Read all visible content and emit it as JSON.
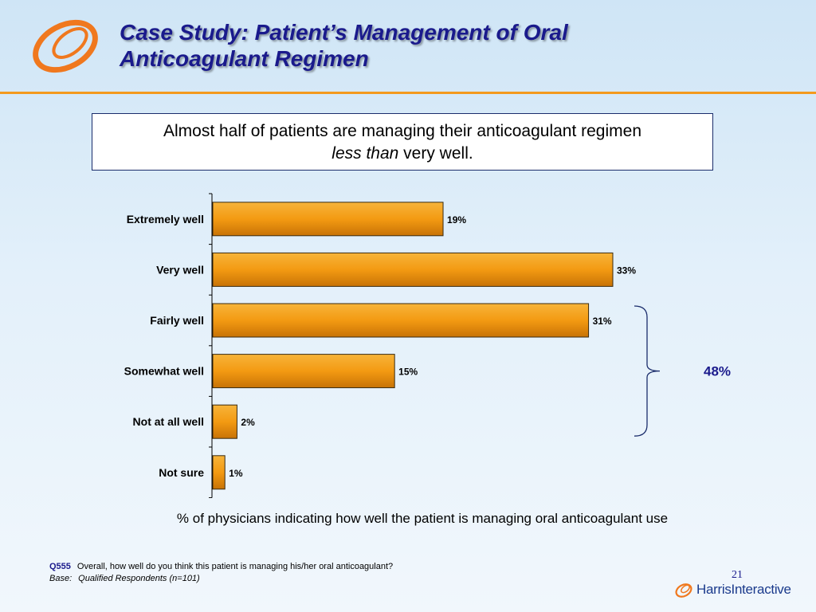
{
  "title": {
    "line1": "Case Study: Patient’s Management of Oral",
    "line2": "Anticoagulant Regimen"
  },
  "callout": {
    "line1": "Almost half of patients are managing their anticoagulant regimen",
    "line2_italic": "less than",
    "line2_rest": " very well."
  },
  "chart_data": {
    "type": "bar",
    "orientation": "horizontal",
    "categories": [
      "Extremely well",
      "Very well",
      "Fairly well",
      "Somewhat well",
      "Not at all well",
      "Not sure"
    ],
    "values": [
      19,
      33,
      31,
      15,
      2,
      1
    ],
    "value_labels": [
      "19%",
      "33%",
      "31%",
      "15%",
      "2%",
      "1%"
    ],
    "xlim": [
      0,
      40
    ],
    "grid": false,
    "bar_color": "#f39a12",
    "bracket": {
      "from": "Fairly well",
      "to": "Not at all well",
      "label": "48%"
    },
    "xlabel": "% of physicians indicating how well the patient is managing oral anticoagulant use"
  },
  "footnote": {
    "qid": "Q555",
    "question": "Overall, how well do you think this patient is managing his/her oral anticoagulant?",
    "base_label": "Base:",
    "base_text": "Qualified Respondents (n=101)"
  },
  "page_number": "21",
  "brand": {
    "part1": "Harris",
    "part2": "Interactive"
  },
  "colors": {
    "accent": "#f39a1e",
    "title": "#1a1a8c",
    "bar_edge": "#3a2a10"
  }
}
